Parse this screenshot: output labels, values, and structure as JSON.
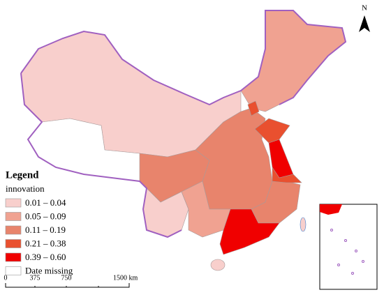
{
  "north_arrow": "N",
  "legend": {
    "title": "Legend",
    "subtitle": "innovation",
    "items": [
      {
        "label": "0.01 – 0.04",
        "color": "#f8cfcc"
      },
      {
        "label": "0.05 – 0.09",
        "color": "#f0a291"
      },
      {
        "label": "0.11 – 0.19",
        "color": "#e8846c"
      },
      {
        "label": "0.21 – 0.38",
        "color": "#e9502f"
      },
      {
        "label": "0.39 – 0.60",
        "color": "#f00000"
      },
      {
        "label": "Date missing",
        "color": "#ffffff"
      }
    ]
  },
  "scale_bar": {
    "labels": [
      "0",
      "375",
      "750",
      "1500 km"
    ]
  }
}
